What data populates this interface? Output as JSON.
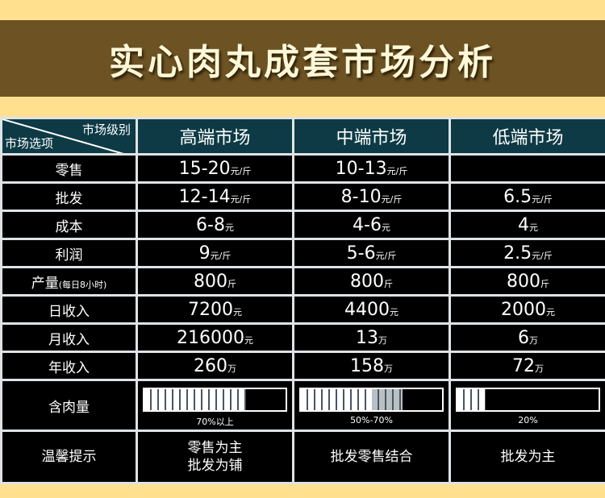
{
  "title": "实心肉丸成套市场分析",
  "corner": {
    "top": "市场级别",
    "bottom": "市场选项"
  },
  "columns": [
    "高端市场",
    "中端市场",
    "低端市场"
  ],
  "rows": [
    {
      "label": "零售",
      "cells": [
        {
          "v": "15-20",
          "u": "元/斤"
        },
        {
          "v": "10-13",
          "u": "元/斤"
        },
        {
          "v": "",
          "u": ""
        }
      ]
    },
    {
      "label": "批发",
      "cells": [
        {
          "v": "12-14",
          "u": "元/斤"
        },
        {
          "v": "8-10",
          "u": "元/斤"
        },
        {
          "v": "6.5",
          "u": "元/斤"
        }
      ]
    },
    {
      "label": "成本",
      "cells": [
        {
          "v": "6-8",
          "u": "元"
        },
        {
          "v": "4-6",
          "u": "元"
        },
        {
          "v": "4",
          "u": "元"
        }
      ]
    },
    {
      "label": "利润",
      "cells": [
        {
          "v": "9",
          "u": "元/斤"
        },
        {
          "v": "5-6",
          "u": "元/斤"
        },
        {
          "v": "2.5",
          "u": "元/斤"
        }
      ]
    },
    {
      "label": "产量",
      "label_note": "(每日8小时)",
      "cells": [
        {
          "v": "800",
          "u": "斤"
        },
        {
          "v": "800",
          "u": "斤"
        },
        {
          "v": "800",
          "u": "斤"
        }
      ]
    },
    {
      "label": "日收入",
      "cells": [
        {
          "v": "7200",
          "u": "元"
        },
        {
          "v": "4400",
          "u": "元"
        },
        {
          "v": "2000",
          "u": "元"
        }
      ]
    },
    {
      "label": "月收入",
      "cells": [
        {
          "v": "216000",
          "u": "元"
        },
        {
          "v": "13",
          "u": "万"
        },
        {
          "v": "6",
          "u": "万"
        }
      ]
    },
    {
      "label": "年收入",
      "cells": [
        {
          "v": "260",
          "u": "万"
        },
        {
          "v": "158",
          "u": "万"
        },
        {
          "v": "72",
          "u": "万"
        }
      ]
    }
  ],
  "meat": {
    "label": "含肉量",
    "bars": [
      {
        "text": "70%以上",
        "level": 0.72
      },
      {
        "text": "50%-70%",
        "level": 0.72,
        "gray_from": 0.5
      },
      {
        "text": "20%",
        "level": 0.2
      }
    ]
  },
  "tips": {
    "label": "温馨提示",
    "cells": [
      [
        "零售为主",
        "批发为铺"
      ],
      [
        "批发零售结合"
      ],
      [
        "批发为主"
      ]
    ]
  }
}
